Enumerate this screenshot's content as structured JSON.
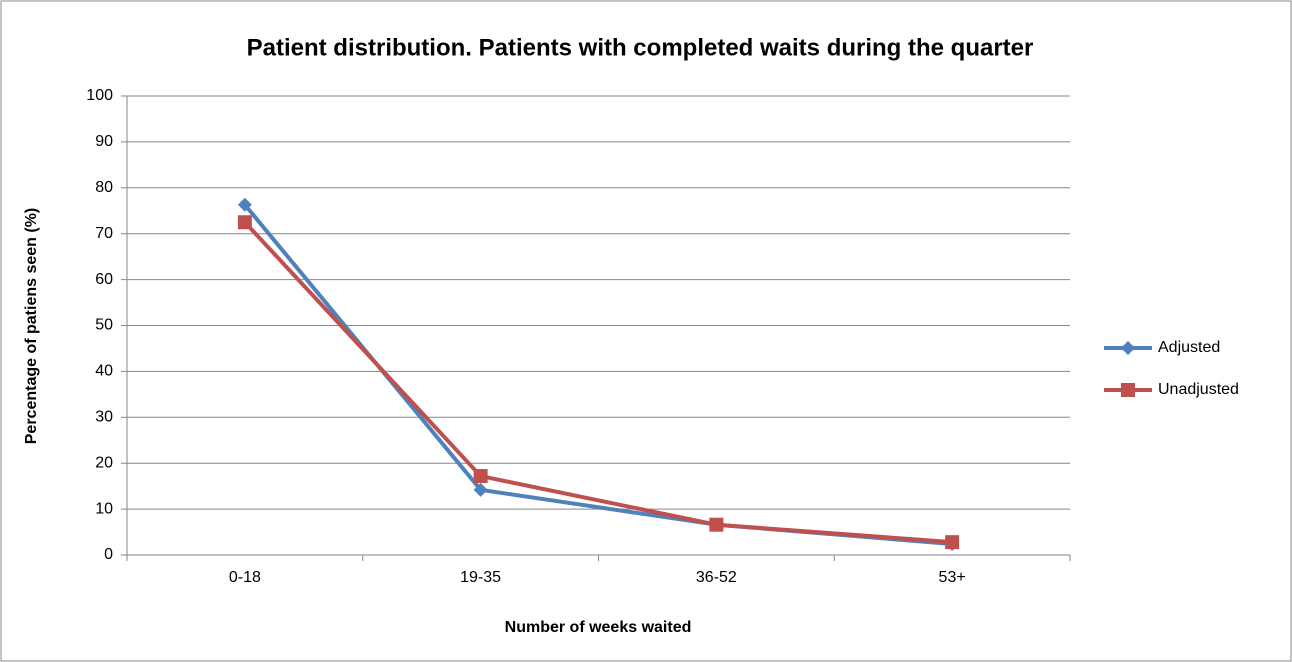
{
  "chart_data": {
    "type": "line",
    "title": "Patient distribution. Patients with completed waits during the quarter",
    "x_label": "Number of weeks waited",
    "y_label": "Percentage of patiens seen (%)",
    "categories": [
      "0-18",
      "19-35",
      "36-52",
      "53+"
    ],
    "series": [
      {
        "name": "Adjusted",
        "color": "#4f81bd",
        "marker": "diamond",
        "values": [
          76.3,
          14.2,
          6.6,
          2.4
        ]
      },
      {
        "name": "Unadjusted",
        "color": "#c0504d",
        "marker": "square",
        "values": [
          72.5,
          17.2,
          6.6,
          2.8
        ]
      }
    ],
    "ylim": [
      0,
      100
    ],
    "yticks": [
      0,
      10,
      20,
      30,
      40,
      50,
      60,
      70,
      80,
      90,
      100
    ],
    "grid": true,
    "legend": "right"
  }
}
